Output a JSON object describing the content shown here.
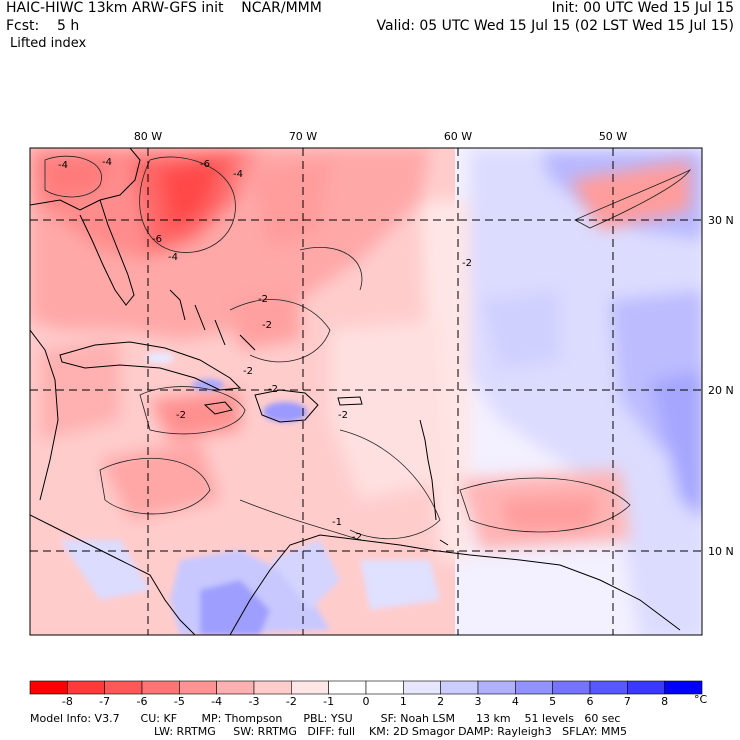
{
  "header": {
    "title": "HAIC-HIWC 13km ARW-GFS init    NCAR/MMM",
    "init": "Init: 00 UTC Wed 15 Jul 15",
    "fcst": "Fcst:    5 h",
    "valid": "Valid: 05 UTC Wed 15 Jul 15 (02 LST Wed 15 Jul 15)",
    "field": "Lifted index"
  },
  "axes": {
    "lon_labels": [
      "80 W",
      "70 W",
      "60 W",
      "50 W"
    ],
    "lat_labels": [
      "30 N",
      "20 N",
      "10 N"
    ]
  },
  "contour_labels": [
    "-4",
    "-4",
    "-6",
    "-4",
    "-6",
    "-4",
    "-2",
    "-2",
    "-2",
    "-2",
    "-2",
    "-2",
    "-2",
    "-1",
    "-2"
  ],
  "colorbar": {
    "labels": [
      "-8",
      "-7",
      "-6",
      "-5",
      "-4",
      "-3",
      "-2",
      "-1",
      "0",
      "1",
      "2",
      "3",
      "4",
      "5",
      "6",
      "7",
      "8"
    ],
    "unit": "°C",
    "colors": [
      "#ff0000",
      "#ff3a3a",
      "#ff5858",
      "#ff7474",
      "#ff9292",
      "#ffb0b0",
      "#ffcccc",
      "#ffe6e6",
      "#ffffff",
      "#e6e6ff",
      "#ccccff",
      "#b0b0ff",
      "#9292ff",
      "#7474ff",
      "#5858ff",
      "#3a3aff",
      "#0000ff"
    ]
  },
  "info": {
    "line1": "Model Info: V3.7      CU: KF       MP: Thompson      PBL: YSU        SF: Noah LSM      13 km    51 levels   60 sec",
    "line2": "LW: RRTMG     SW: RRTMG   DIFF: full    KM: 2D Smagor DAMP: Rayleigh3   SFLAY: MM5"
  }
}
